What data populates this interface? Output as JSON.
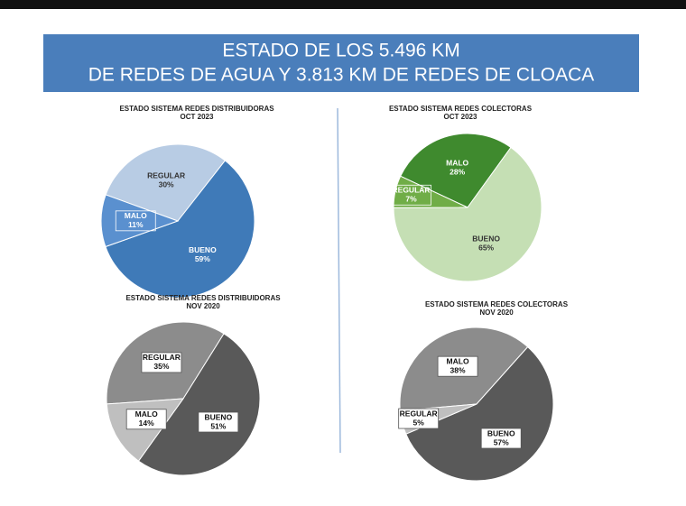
{
  "header": {
    "title": [
      "ESTADO DE LOS 5.496 KM",
      "DE REDES DE AGUA Y 3.813 KM DE REDES DE CLOACA"
    ]
  },
  "chart_data": [
    {
      "type": "pie",
      "title": "ESTADO SISTEMA REDES DISTRIBUIDORAS",
      "subtitle": "OCT 2023",
      "categories": [
        "REGULAR",
        "BUENO",
        "MALO"
      ],
      "values": [
        30,
        59,
        11
      ],
      "value_labels": [
        "30%",
        "59%",
        "11%"
      ],
      "colors": [
        "#b8cce4",
        "#3f7ab8",
        "#5a90cf"
      ]
    },
    {
      "type": "pie",
      "title": "ESTADO SISTEMA REDES COLECTORAS",
      "subtitle": "OCT 2023",
      "categories": [
        "MALO",
        "BUENO",
        "REGULAR"
      ],
      "values": [
        28,
        65,
        7
      ],
      "value_labels": [
        "28%",
        "65%",
        "7%"
      ],
      "colors": [
        "#3f8a2e",
        "#c5dfb4",
        "#70ad47"
      ]
    },
    {
      "type": "pie",
      "title": "ESTADO SISTEMA REDES DISTRIBUIDORAS",
      "subtitle": "NOV 2020",
      "categories": [
        "REGULAR",
        "BUENO",
        "MALO"
      ],
      "values": [
        35,
        51,
        14
      ],
      "value_labels": [
        "35%",
        "51%",
        "14%"
      ],
      "colors": [
        "#8c8c8c",
        "#595959",
        "#bfbfbf"
      ]
    },
    {
      "type": "pie",
      "title": "ESTADO SISTEMA REDES COLECTORAS",
      "subtitle": "NOV 2020",
      "categories": [
        "MALO",
        "BUENO",
        "REGULAR"
      ],
      "values": [
        38,
        57,
        5
      ],
      "value_labels": [
        "38%",
        "57%",
        "5%"
      ],
      "colors": [
        "#8c8c8c",
        "#595959",
        "#bfbfbf"
      ]
    }
  ]
}
